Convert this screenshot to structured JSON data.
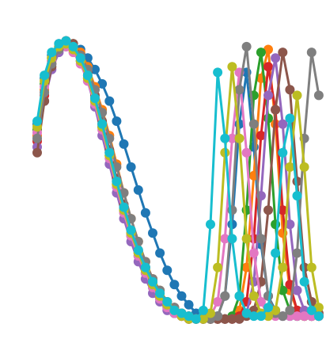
{
  "chart_data": {
    "type": "line",
    "title": "",
    "xlabel": "",
    "ylabel": "",
    "xlim": [
      0,
      40
    ],
    "ylim": [
      0,
      1
    ],
    "axes_visible": false,
    "grid": false,
    "legend": "none",
    "marker": "circle",
    "palette": [
      "#1f77b4",
      "#ff7f0e",
      "#2ca02c",
      "#d62728",
      "#9467bd",
      "#8c564b",
      "#e377c2",
      "#7f7f7f",
      "#bcbd22",
      "#17becf"
    ],
    "series": [
      {
        "color": "#1f77b4",
        "values": [
          0.7,
          0.86,
          0.94,
          0.98,
          0.99,
          0.98,
          0.96,
          0.93,
          0.89,
          0.84,
          0.78,
          0.71,
          0.63,
          0.55,
          0.47,
          0.39,
          0.32,
          0.25,
          0.19,
          0.14,
          0.1,
          0.07,
          0.04,
          0.03,
          0.02,
          0.03,
          0.1,
          0.35,
          0.7,
          0.88,
          0.62,
          0.28,
          0.1,
          0.05,
          0.03,
          0.03,
          0.03,
          0.03,
          0.03,
          0.03
        ]
      },
      {
        "color": "#ff7f0e",
        "values": [
          0.66,
          0.82,
          0.92,
          0.97,
          0.99,
          0.98,
          0.95,
          0.9,
          0.83,
          0.75,
          0.66,
          0.56,
          0.46,
          0.37,
          0.29,
          0.22,
          0.16,
          0.12,
          0.08,
          0.06,
          0.04,
          0.03,
          0.02,
          0.02,
          0.02,
          0.02,
          0.02,
          0.02,
          0.05,
          0.2,
          0.52,
          0.86,
          0.96,
          0.7,
          0.32,
          0.12,
          0.05,
          0.03,
          0.03,
          0.03
        ]
      },
      {
        "color": "#2ca02c",
        "values": [
          0.68,
          0.84,
          0.93,
          0.97,
          0.98,
          0.96,
          0.92,
          0.86,
          0.78,
          0.69,
          0.59,
          0.49,
          0.4,
          0.31,
          0.24,
          0.18,
          0.13,
          0.09,
          0.06,
          0.04,
          0.03,
          0.02,
          0.02,
          0.02,
          0.02,
          0.02,
          0.02,
          0.03,
          0.1,
          0.4,
          0.8,
          0.95,
          0.72,
          0.35,
          0.12,
          0.05,
          0.03,
          0.03,
          0.03,
          0.03
        ]
      },
      {
        "color": "#d62728",
        "values": [
          0.64,
          0.8,
          0.91,
          0.96,
          0.98,
          0.97,
          0.93,
          0.87,
          0.79,
          0.7,
          0.6,
          0.5,
          0.41,
          0.32,
          0.25,
          0.19,
          0.14,
          0.1,
          0.07,
          0.05,
          0.03,
          0.02,
          0.02,
          0.02,
          0.02,
          0.02,
          0.02,
          0.02,
          0.03,
          0.08,
          0.3,
          0.66,
          0.9,
          0.75,
          0.4,
          0.14,
          0.05,
          0.03,
          0.03,
          0.03
        ]
      },
      {
        "color": "#9467bd",
        "values": [
          0.62,
          0.78,
          0.89,
          0.95,
          0.97,
          0.96,
          0.92,
          0.85,
          0.76,
          0.66,
          0.56,
          0.46,
          0.37,
          0.29,
          0.22,
          0.16,
          0.11,
          0.08,
          0.05,
          0.04,
          0.03,
          0.02,
          0.02,
          0.02,
          0.02,
          0.02,
          0.02,
          0.02,
          0.02,
          0.04,
          0.15,
          0.45,
          0.8,
          0.93,
          0.7,
          0.35,
          0.12,
          0.05,
          0.03,
          0.03
        ]
      },
      {
        "color": "#8c564b",
        "values": [
          0.6,
          0.78,
          0.9,
          0.97,
          0.99,
          0.98,
          0.94,
          0.88,
          0.8,
          0.71,
          0.61,
          0.51,
          0.42,
          0.33,
          0.26,
          0.2,
          0.15,
          0.11,
          0.08,
          0.06,
          0.04,
          0.03,
          0.02,
          0.02,
          0.02,
          0.02,
          0.02,
          0.02,
          0.02,
          0.03,
          0.05,
          0.15,
          0.4,
          0.75,
          0.95,
          0.82,
          0.5,
          0.2,
          0.08,
          0.04
        ]
      },
      {
        "color": "#e377c2",
        "values": [
          0.67,
          0.83,
          0.92,
          0.96,
          0.97,
          0.95,
          0.91,
          0.85,
          0.77,
          0.68,
          0.58,
          0.48,
          0.39,
          0.31,
          0.24,
          0.18,
          0.13,
          0.09,
          0.06,
          0.04,
          0.03,
          0.02,
          0.02,
          0.02,
          0.03,
          0.08,
          0.3,
          0.65,
          0.88,
          0.6,
          0.25,
          0.08,
          0.03,
          0.03,
          0.03,
          0.03,
          0.03,
          0.03,
          0.03,
          0.03
        ]
      },
      {
        "color": "#7f7f7f",
        "values": [
          0.65,
          0.81,
          0.91,
          0.96,
          0.98,
          0.97,
          0.94,
          0.89,
          0.82,
          0.74,
          0.65,
          0.55,
          0.46,
          0.37,
          0.29,
          0.22,
          0.16,
          0.12,
          0.08,
          0.06,
          0.04,
          0.03,
          0.02,
          0.02,
          0.02,
          0.03,
          0.1,
          0.4,
          0.82,
          0.97,
          0.7,
          0.3,
          0.1,
          0.04,
          0.03,
          0.05,
          0.25,
          0.65,
          0.95,
          0.8
        ]
      },
      {
        "color": "#bcbd22",
        "values": [
          0.69,
          0.85,
          0.93,
          0.97,
          0.98,
          0.96,
          0.92,
          0.86,
          0.78,
          0.69,
          0.59,
          0.49,
          0.4,
          0.32,
          0.25,
          0.19,
          0.14,
          0.1,
          0.07,
          0.05,
          0.03,
          0.02,
          0.02,
          0.02,
          0.04,
          0.2,
          0.6,
          0.9,
          0.65,
          0.3,
          0.1,
          0.04,
          0.03,
          0.05,
          0.2,
          0.55,
          0.8,
          0.55,
          0.2,
          0.06
        ]
      },
      {
        "color": "#17becf",
        "values": [
          0.71,
          0.87,
          0.95,
          0.98,
          0.99,
          0.97,
          0.93,
          0.87,
          0.79,
          0.7,
          0.6,
          0.5,
          0.41,
          0.33,
          0.26,
          0.2,
          0.15,
          0.11,
          0.08,
          0.05,
          0.04,
          0.03,
          0.02,
          0.05,
          0.35,
          0.88,
          0.65,
          0.3,
          0.1,
          0.04,
          0.03,
          0.03,
          0.06,
          0.25,
          0.6,
          0.72,
          0.45,
          0.15,
          0.05,
          0.03
        ]
      }
    ]
  }
}
